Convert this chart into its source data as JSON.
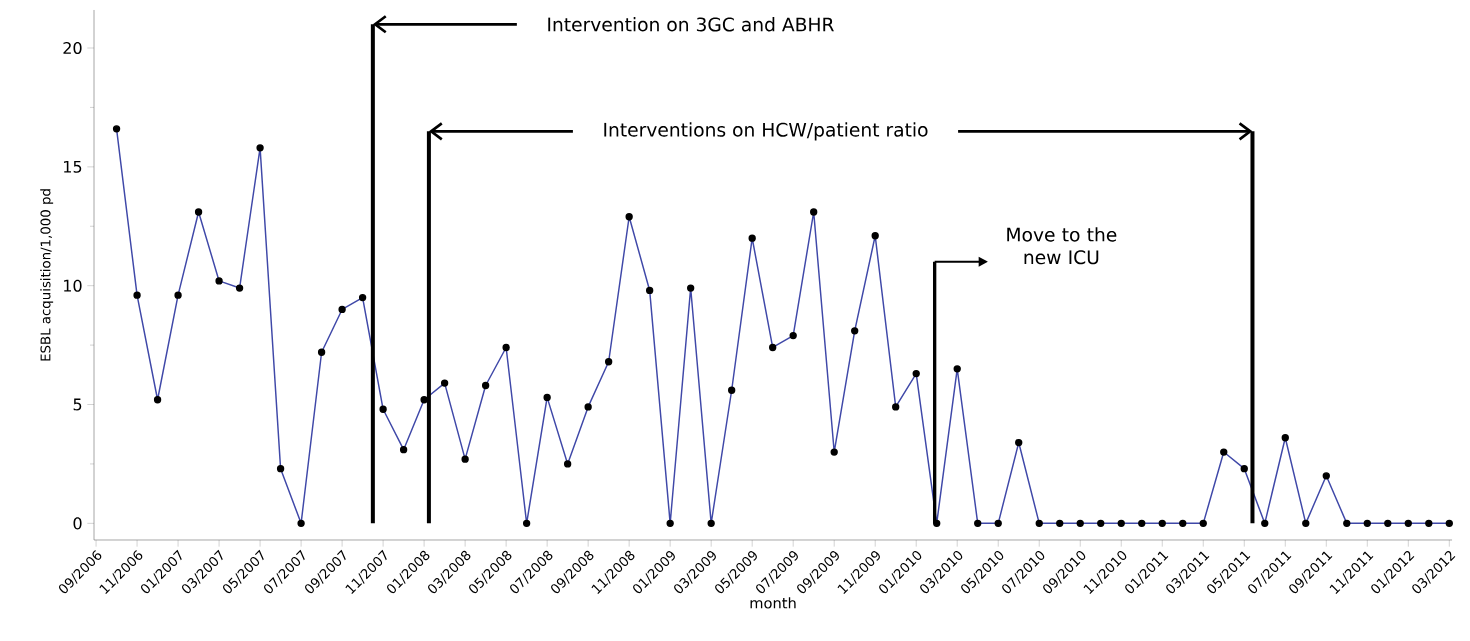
{
  "chart_data": {
    "type": "line",
    "ylabel": "ESBL acquisition/1,000 pd",
    "xlabel": "month",
    "x": [
      "2006-10",
      "2006-11",
      "2006-12",
      "2007-01",
      "2007-02",
      "2007-03",
      "2007-04",
      "2007-05",
      "2007-06",
      "2007-07",
      "2007-08",
      "2007-09",
      "2007-10",
      "2007-11",
      "2007-12",
      "2008-01",
      "2008-02",
      "2008-03",
      "2008-04",
      "2008-05",
      "2008-06",
      "2008-07",
      "2008-08",
      "2008-09",
      "2008-10",
      "2008-11",
      "2008-12",
      "2009-01",
      "2009-02",
      "2009-03",
      "2009-04",
      "2009-05",
      "2009-06",
      "2009-07",
      "2009-08",
      "2009-09",
      "2009-10",
      "2009-11",
      "2009-12",
      "2010-01",
      "2010-02",
      "2010-03",
      "2010-04",
      "2010-05",
      "2010-06",
      "2010-07",
      "2010-08",
      "2010-09",
      "2010-10",
      "2010-11",
      "2010-12",
      "2011-01",
      "2011-02",
      "2011-03",
      "2011-04",
      "2011-05",
      "2011-06",
      "2011-07",
      "2011-08",
      "2011-09",
      "2011-10",
      "2011-11",
      "2011-12",
      "2012-01",
      "2012-02",
      "2012-03"
    ],
    "values": [
      16.6,
      9.6,
      5.2,
      9.6,
      13.1,
      10.2,
      9.9,
      15.8,
      2.3,
      0,
      7.2,
      9.0,
      9.5,
      4.8,
      3.1,
      5.2,
      5.9,
      2.7,
      5.8,
      7.4,
      0,
      5.3,
      2.5,
      4.9,
      6.8,
      12.9,
      9.8,
      0,
      9.9,
      0,
      5.6,
      12.0,
      7.4,
      7.9,
      13.1,
      3.0,
      8.1,
      12.1,
      4.9,
      6.3,
      0,
      6.5,
      0,
      0,
      3.4,
      0,
      0,
      0,
      0,
      0,
      0,
      0,
      0,
      0,
      3.0,
      2.3,
      0,
      3.6,
      0,
      2.0,
      0,
      0,
      0,
      0,
      0,
      0
    ],
    "color": "#3f48a8",
    "marker": "circle",
    "line_style": "solid",
    "grid": false,
    "xlim": [
      "2006-08-28",
      "2012-03-05"
    ],
    "ylim": [
      -0.7,
      21.6
    ],
    "yticks": [
      0,
      5,
      10,
      15,
      20
    ],
    "xticks": [
      {
        "value": "2006-09",
        "label": "09/2006"
      },
      {
        "value": "2006-11",
        "label": "11/2006"
      },
      {
        "value": "2007-01",
        "label": "01/2007"
      },
      {
        "value": "2007-03",
        "label": "03/2007"
      },
      {
        "value": "2007-05",
        "label": "05/2007"
      },
      {
        "value": "2007-07",
        "label": "07/2007"
      },
      {
        "value": "2007-09",
        "label": "09/2007"
      },
      {
        "value": "2007-11",
        "label": "11/2007"
      },
      {
        "value": "2008-01",
        "label": "01/2008"
      },
      {
        "value": "2008-03",
        "label": "03/2008"
      },
      {
        "value": "2008-05",
        "label": "05/2008"
      },
      {
        "value": "2008-07",
        "label": "07/2008"
      },
      {
        "value": "2008-09",
        "label": "09/2008"
      },
      {
        "value": "2008-11",
        "label": "11/2008"
      },
      {
        "value": "2009-01",
        "label": "01/2009"
      },
      {
        "value": "2009-03",
        "label": "03/2009"
      },
      {
        "value": "2009-05",
        "label": "05/2009"
      },
      {
        "value": "2009-07",
        "label": "07/2009"
      },
      {
        "value": "2009-09",
        "label": "09/2009"
      },
      {
        "value": "2009-11",
        "label": "11/2009"
      },
      {
        "value": "2010-01",
        "label": "01/2010"
      },
      {
        "value": "2010-03",
        "label": "03/2010"
      },
      {
        "value": "2010-05",
        "label": "05/2010"
      },
      {
        "value": "2010-07",
        "label": "07/2010"
      },
      {
        "value": "2010-09",
        "label": "09/2010"
      },
      {
        "value": "2010-11",
        "label": "11/2010"
      },
      {
        "value": "2011-01",
        "label": "01/2011"
      },
      {
        "value": "2011-03",
        "label": "03/2011"
      },
      {
        "value": "2011-05",
        "label": "05/2011"
      },
      {
        "value": "2011-07",
        "label": "07/2011"
      },
      {
        "value": "2011-09",
        "label": "09/2011"
      },
      {
        "value": "2011-11",
        "label": "11/2011"
      },
      {
        "value": "2012-01",
        "label": "01/2012"
      },
      {
        "value": "2012-03",
        "label": "03/2012"
      }
    ],
    "ref_lines": [
      {
        "axis": "x",
        "value": "2007-10-16"
      },
      {
        "axis": "x",
        "value": "2008-01-08"
      },
      {
        "axis": "x",
        "value": "2010-01-28"
      },
      {
        "axis": "x",
        "value": "2011-05-13"
      }
    ],
    "annotations": [
      "Intervention on 3GC and ABHR",
      "Interventions on HCW/patient ratio",
      "Move to the new ICU"
    ]
  }
}
